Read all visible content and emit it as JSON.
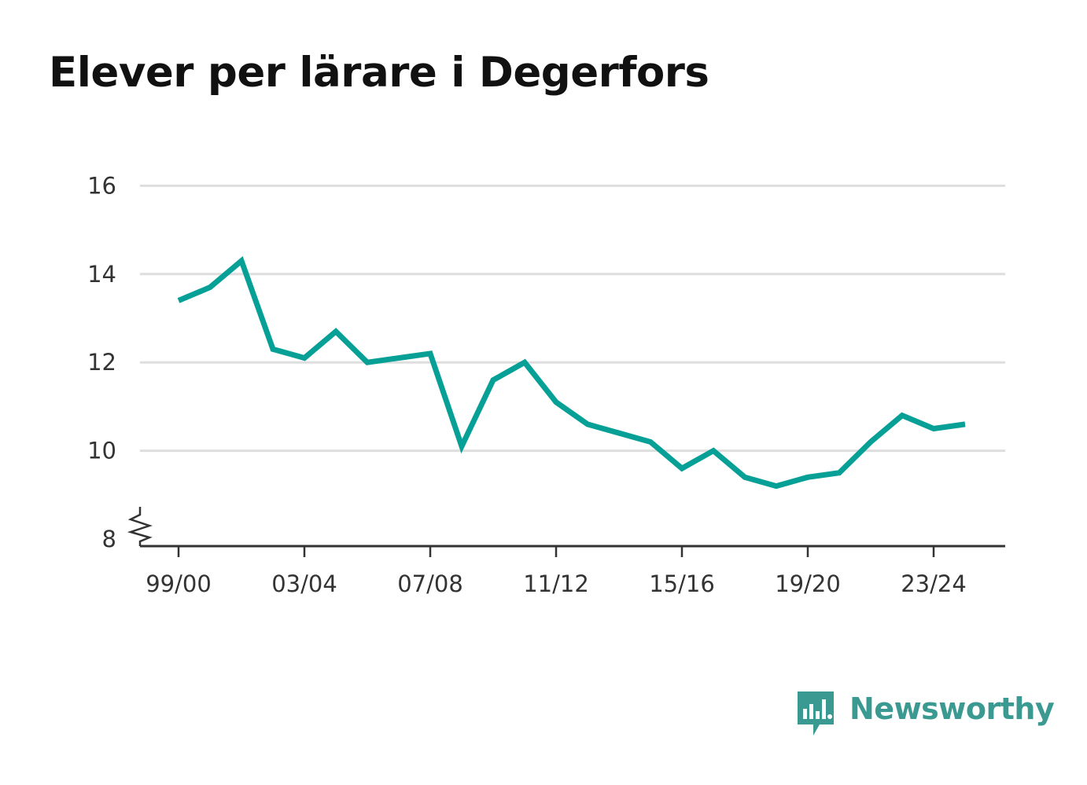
{
  "colors": {
    "line": "#06a096",
    "grid": "#dedede",
    "axis": "#333333",
    "title": "#111111",
    "brand": "#3a9990"
  },
  "chart_data": {
    "type": "line",
    "title": "Elever per lärare i Degerfors",
    "subtitle": "",
    "xlabel": "",
    "ylabel": "",
    "ylim": [
      8,
      16
    ],
    "y_axis_break": true,
    "grid": "horizontal",
    "yticks": [
      "8",
      "10",
      "12",
      "14",
      "16"
    ],
    "xticks": [
      "99/00",
      "03/04",
      "07/08",
      "11/12",
      "15/16",
      "19/20",
      "23/24"
    ],
    "x": [
      "99/00",
      "00/01",
      "01/02",
      "02/03",
      "03/04",
      "04/05",
      "05/06",
      "06/07",
      "07/08",
      "08/09",
      "09/10",
      "10/11",
      "11/12",
      "12/13",
      "13/14",
      "14/15",
      "15/16",
      "16/17",
      "17/18",
      "18/19",
      "19/20",
      "20/21",
      "21/22",
      "22/23",
      "23/24",
      "24/25"
    ],
    "series": [
      {
        "values": [
          13.4,
          13.7,
          14.3,
          12.3,
          12.1,
          12.7,
          12.0,
          12.1,
          12.2,
          10.1,
          11.6,
          12.0,
          11.1,
          10.6,
          10.4,
          10.2,
          9.6,
          10.0,
          9.4,
          9.2,
          9.4,
          9.5,
          10.2,
          10.8,
          10.5,
          10.6
        ]
      }
    ]
  },
  "brand": {
    "name": "Newsworthy",
    "icon": "newsworthy-logo-icon"
  }
}
